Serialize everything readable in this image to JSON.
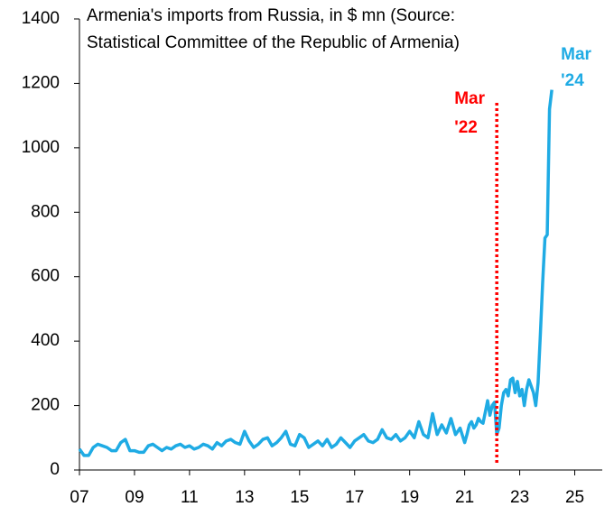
{
  "chart_data": {
    "type": "line",
    "title": [
      "Armenia's imports from Russia, in $ mn (Source:",
      "Statistical Committee of the Republic of Armenia)"
    ],
    "x": [
      2007,
      2007.167,
      2007.333,
      2007.5,
      2007.667,
      2007.833,
      2008,
      2008.167,
      2008.333,
      2008.5,
      2008.667,
      2008.833,
      2009,
      2009.167,
      2009.333,
      2009.5,
      2009.667,
      2009.833,
      2010,
      2010.167,
      2010.333,
      2010.5,
      2010.667,
      2010.833,
      2011,
      2011.167,
      2011.333,
      2011.5,
      2011.667,
      2011.833,
      2012,
      2012.167,
      2012.333,
      2012.5,
      2012.667,
      2012.833,
      2013,
      2013.167,
      2013.333,
      2013.5,
      2013.667,
      2013.833,
      2014,
      2014.167,
      2014.333,
      2014.5,
      2014.667,
      2014.833,
      2015,
      2015.167,
      2015.333,
      2015.5,
      2015.667,
      2015.833,
      2016,
      2016.167,
      2016.333,
      2016.5,
      2016.667,
      2016.833,
      2017,
      2017.167,
      2017.333,
      2017.5,
      2017.667,
      2017.833,
      2018,
      2018.167,
      2018.333,
      2018.5,
      2018.667,
      2018.833,
      2019,
      2019.167,
      2019.333,
      2019.5,
      2019.667,
      2019.833,
      2020,
      2020.167,
      2020.333,
      2020.5,
      2020.667,
      2020.833,
      2021,
      2021.083,
      2021.167,
      2021.25,
      2021.333,
      2021.417,
      2021.5,
      2021.583,
      2021.667,
      2021.75,
      2021.833,
      2021.917,
      2022,
      2022.083,
      2022.167,
      2022.25,
      2022.333,
      2022.417,
      2022.5,
      2022.583,
      2022.667,
      2022.75,
      2022.833,
      2022.917,
      2023,
      2023.083,
      2023.167,
      2023.25,
      2023.333,
      2023.417,
      2023.5,
      2023.583,
      2023.667,
      2023.75,
      2023.833,
      2023.917,
      2024,
      2024.083,
      2024.167
    ],
    "series": [
      {
        "name": "Imports from Russia",
        "color": "#1fabe4",
        "values": [
          65,
          45,
          45,
          70,
          80,
          75,
          70,
          60,
          60,
          85,
          95,
          60,
          60,
          55,
          55,
          75,
          80,
          70,
          60,
          70,
          65,
          75,
          80,
          70,
          75,
          65,
          70,
          80,
          75,
          65,
          85,
          75,
          90,
          95,
          85,
          80,
          120,
          90,
          70,
          80,
          95,
          100,
          75,
          85,
          100,
          120,
          80,
          75,
          110,
          100,
          70,
          80,
          90,
          75,
          95,
          70,
          80,
          100,
          85,
          70,
          90,
          100,
          110,
          90,
          85,
          95,
          125,
          100,
          95,
          110,
          90,
          100,
          120,
          100,
          150,
          110,
          100,
          175,
          110,
          140,
          115,
          160,
          110,
          130,
          85,
          110,
          140,
          150,
          130,
          140,
          160,
          150,
          145,
          180,
          215,
          170,
          200,
          210,
          110,
          130,
          200,
          240,
          250,
          230,
          280,
          285,
          240,
          275,
          230,
          250,
          200,
          250,
          280,
          260,
          240,
          200,
          270,
          420,
          580,
          720,
          730,
          1120,
          1180
        ]
      }
    ],
    "xlim": [
      2007,
      2026
    ],
    "xticks": [
      {
        "value": 2007,
        "label": "07"
      },
      {
        "value": 2009,
        "label": "09"
      },
      {
        "value": 2011,
        "label": "11"
      },
      {
        "value": 2013,
        "label": "13"
      },
      {
        "value": 2015,
        "label": "15"
      },
      {
        "value": 2017,
        "label": "17"
      },
      {
        "value": 2019,
        "label": "19"
      },
      {
        "value": 2021,
        "label": "21"
      },
      {
        "value": 2023,
        "label": "23"
      },
      {
        "value": 2025,
        "label": "25"
      }
    ],
    "ylim": [
      0,
      1400
    ],
    "yticks": [
      0,
      200,
      400,
      600,
      800,
      1000,
      1200,
      1400
    ],
    "annotations": [
      {
        "lines": [
          "Mar",
          "'22"
        ],
        "x": 2022.167,
        "color": "#ff0000"
      },
      {
        "lines": [
          "Mar",
          "'24"
        ],
        "x": 2024.167,
        "color": "#1fabe4"
      }
    ]
  }
}
